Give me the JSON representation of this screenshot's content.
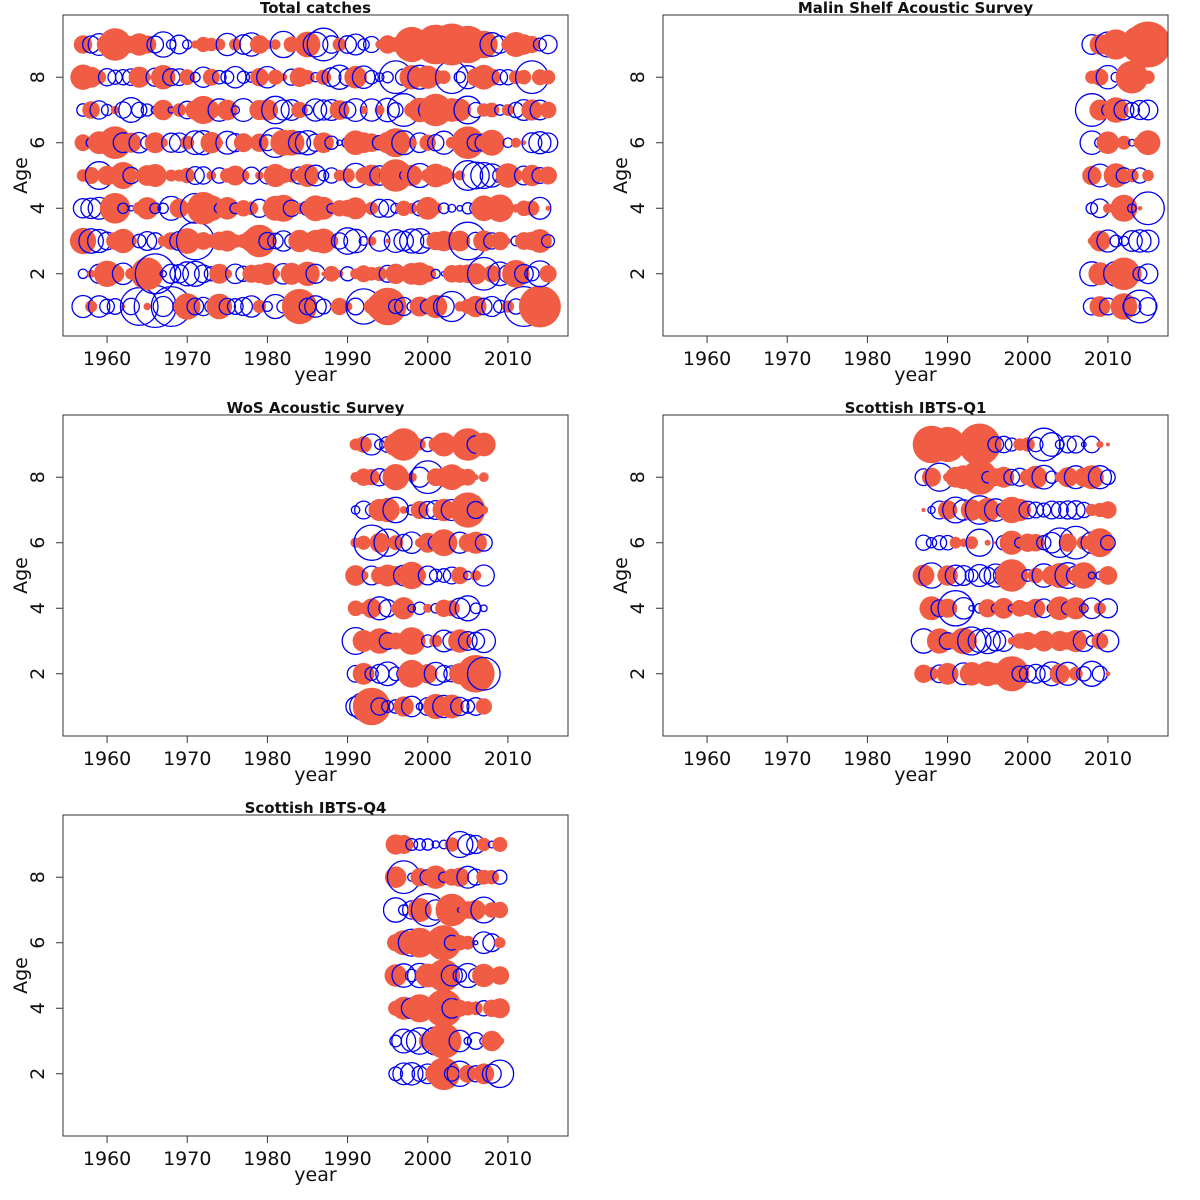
{
  "colors": {
    "positive": "#f05d44",
    "negative": "#0000ee",
    "frame": "#333333"
  },
  "chart_data": [
    {
      "type": "scatter",
      "subtype": "bubble-residuals",
      "title": "Total catches",
      "xlabel": "year",
      "ylabel": "Age",
      "xlim": [
        1954.5,
        2017.5
      ],
      "ylim": [
        0.1,
        9.9
      ],
      "xticks": [
        1960,
        1970,
        1980,
        1990,
        2000,
        2010
      ],
      "yticks": [
        2,
        4,
        6,
        8
      ],
      "years": [
        1957,
        2015
      ],
      "ages": [
        1,
        2,
        3,
        4,
        5,
        6,
        7,
        8,
        9
      ],
      "seed": 11,
      "highlights": [
        {
          "x": 2003,
          "y": 9,
          "v": 1.0
        },
        {
          "x": 2001,
          "y": 9,
          "v": 0.9
        },
        {
          "x": 2005,
          "y": 9,
          "v": 0.8
        },
        {
          "x": 1961,
          "y": 9,
          "v": 0.6
        },
        {
          "x": 1987,
          "y": 9,
          "v": -0.6
        },
        {
          "x": 1998,
          "y": 9,
          "v": 0.7
        },
        {
          "x": 2003,
          "y": 8,
          "v": -0.6
        },
        {
          "x": 2013,
          "y": 8,
          "v": -0.6
        },
        {
          "x": 1996,
          "y": 8,
          "v": -0.6
        },
        {
          "x": 2001,
          "y": 7,
          "v": 0.6
        },
        {
          "x": 1997,
          "y": 7,
          "v": -0.6
        },
        {
          "x": 1961,
          "y": 6,
          "v": 0.6
        },
        {
          "x": 2005,
          "y": 6,
          "v": 0.6
        },
        {
          "x": 1996,
          "y": 5,
          "v": 0.6
        },
        {
          "x": 2005,
          "y": 5,
          "v": -0.5
        },
        {
          "x": 1972,
          "y": 4,
          "v": 0.6
        },
        {
          "x": 1971,
          "y": 4,
          "v": -0.5
        },
        {
          "x": 1971,
          "y": 3,
          "v": -0.8
        },
        {
          "x": 2005,
          "y": 3,
          "v": -0.8
        },
        {
          "x": 1979,
          "y": 3,
          "v": 0.6
        },
        {
          "x": 1966,
          "y": 2,
          "v": -0.9
        },
        {
          "x": 1965,
          "y": 2,
          "v": 0.6
        },
        {
          "x": 2007,
          "y": 2,
          "v": -0.6
        },
        {
          "x": 1966,
          "y": 1,
          "v": -1.0
        },
        {
          "x": 1968,
          "y": 1,
          "v": -0.9
        },
        {
          "x": 1964,
          "y": 1,
          "v": -0.8
        },
        {
          "x": 2014,
          "y": 1,
          "v": 1.0
        },
        {
          "x": 2012,
          "y": 1,
          "v": -0.9
        },
        {
          "x": 1984,
          "y": 1,
          "v": 0.7
        },
        {
          "x": 1995,
          "y": 1,
          "v": 0.8
        },
        {
          "x": 1992,
          "y": 1,
          "v": -0.7
        }
      ]
    },
    {
      "type": "scatter",
      "subtype": "bubble-residuals",
      "title": "Malin Shelf Acoustic Survey",
      "xlabel": "year",
      "ylabel": "Age",
      "xlim": [
        1954.5,
        2017.5
      ],
      "ylim": [
        0.1,
        9.9
      ],
      "xticks": [
        1960,
        1970,
        1980,
        1990,
        2000,
        2010
      ],
      "yticks": [
        2,
        4,
        6,
        8
      ],
      "years": [
        2008,
        2015
      ],
      "ages": [
        1,
        2,
        3,
        4,
        5,
        6,
        7,
        8,
        9
      ],
      "seed": 23,
      "highlights": [
        {
          "x": 2015,
          "y": 9,
          "v": 1.2
        },
        {
          "x": 2014,
          "y": 9,
          "v": 0.8
        },
        {
          "x": 2013,
          "y": 8,
          "v": 0.6
        },
        {
          "x": 2008,
          "y": 7,
          "v": -0.6
        },
        {
          "x": 2012,
          "y": 2,
          "v": 0.6
        },
        {
          "x": 2015,
          "y": 4,
          "v": -0.6
        },
        {
          "x": 2014,
          "y": 1,
          "v": -0.6
        },
        {
          "x": 2012,
          "y": 1,
          "v": 0.4
        }
      ]
    },
    {
      "type": "scatter",
      "subtype": "bubble-residuals",
      "title": "WoS Acoustic Survey",
      "xlabel": "year",
      "ylabel": "Age",
      "xlim": [
        1954.5,
        2017.5
      ],
      "ylim": [
        0.1,
        9.9
      ],
      "xticks": [
        1960,
        1970,
        1980,
        1990,
        2000,
        2010
      ],
      "yticks": [
        2,
        4,
        6,
        8
      ],
      "years": [
        1991,
        2007
      ],
      "ages": [
        1,
        2,
        3,
        4,
        5,
        6,
        7,
        8,
        9
      ],
      "seed": 37,
      "highlights": [
        {
          "x": 1993,
          "y": 1,
          "v": 0.8
        },
        {
          "x": 1997,
          "y": 9,
          "v": 0.6
        },
        {
          "x": 2005,
          "y": 9,
          "v": 0.6
        },
        {
          "x": 2005,
          "y": 7,
          "v": 0.7
        },
        {
          "x": 2006,
          "y": 2,
          "v": 0.8
        },
        {
          "x": 2007,
          "y": 2,
          "v": -0.6
        },
        {
          "x": 1993,
          "y": 6,
          "v": -0.7
        },
        {
          "x": 2000,
          "y": 8,
          "v": -0.6
        }
      ]
    },
    {
      "type": "scatter",
      "subtype": "bubble-residuals",
      "title": "Scottish IBTS-Q1",
      "xlabel": "year",
      "ylabel": "Age",
      "xlim": [
        1954.5,
        2017.5
      ],
      "ylim": [
        0.1,
        9.9
      ],
      "xticks": [
        1960,
        1970,
        1980,
        1990,
        2000,
        2010
      ],
      "yticks": [
        2,
        4,
        6,
        8
      ],
      "years": [
        1987,
        2010
      ],
      "ages": [
        2,
        3,
        4,
        5,
        6,
        7,
        8,
        9
      ],
      "seed": 51,
      "highlights": [
        {
          "x": 1994,
          "y": 9,
          "v": 1.0
        },
        {
          "x": 1988,
          "y": 9,
          "v": 0.8
        },
        {
          "x": 1990,
          "y": 9,
          "v": 0.7
        },
        {
          "x": 1994,
          "y": 8,
          "v": 0.7
        },
        {
          "x": 1991,
          "y": 4,
          "v": -0.7
        },
        {
          "x": 1998,
          "y": 2,
          "v": 0.7
        },
        {
          "x": 1998,
          "y": 5,
          "v": 0.6
        },
        {
          "x": 2002,
          "y": 9,
          "v": -0.6
        },
        {
          "x": 2006,
          "y": 6,
          "v": -0.6
        }
      ]
    },
    {
      "type": "scatter",
      "subtype": "bubble-residuals",
      "title": "Scottish IBTS-Q4",
      "xlabel": "year",
      "ylabel": "Age",
      "xlim": [
        1954.5,
        2017.5
      ],
      "ylim": [
        0.1,
        9.9
      ],
      "xticks": [
        1960,
        1970,
        1980,
        1990,
        2000,
        2010
      ],
      "yticks": [
        2,
        4,
        6,
        8
      ],
      "years": [
        1996,
        2009
      ],
      "ages": [
        2,
        3,
        4,
        5,
        6,
        7,
        8,
        9
      ],
      "seed": 67,
      "highlights": [
        {
          "x": 2002,
          "y": 4,
          "v": 0.8
        },
        {
          "x": 2002,
          "y": 3,
          "v": 0.7
        },
        {
          "x": 2002,
          "y": 6,
          "v": 0.7
        },
        {
          "x": 2002,
          "y": 5,
          "v": 0.6
        },
        {
          "x": 2002,
          "y": 2,
          "v": 0.6
        },
        {
          "x": 2003,
          "y": 7,
          "v": 0.6
        },
        {
          "x": 1997,
          "y": 8,
          "v": -0.6
        },
        {
          "x": 2000,
          "y": 7,
          "v": -0.6
        }
      ]
    }
  ]
}
